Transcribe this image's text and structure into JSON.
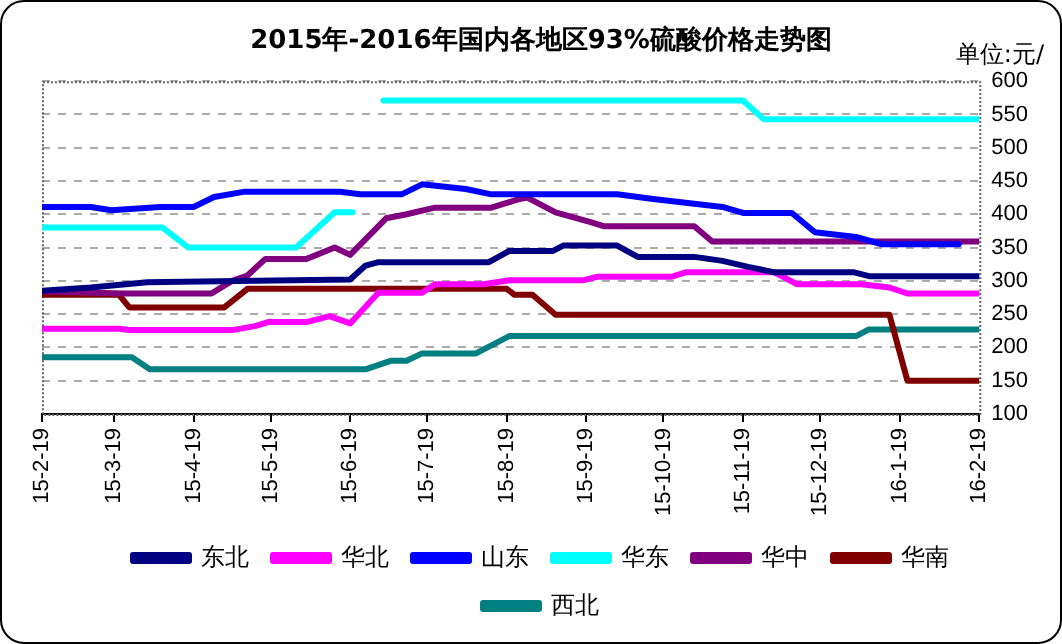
{
  "chart_data": {
    "type": "line",
    "title": "2015年-2016年国内各地区93%硫酸价格走势图",
    "ylabel": "单位:元/",
    "xlim": [
      "2015-02-19",
      "2016-02-19"
    ],
    "xticks": [
      {
        "value": "2015-02-19",
        "label": "15-2-19"
      },
      {
        "value": "2015-03-19",
        "label": "15-3-19"
      },
      {
        "value": "2015-04-19",
        "label": "15-4-19"
      },
      {
        "value": "2015-05-19",
        "label": "15-5-19"
      },
      {
        "value": "2015-06-19",
        "label": "15-6-19"
      },
      {
        "value": "2015-07-19",
        "label": "15-7-19"
      },
      {
        "value": "2015-08-19",
        "label": "15-8-19"
      },
      {
        "value": "2015-09-19",
        "label": "15-9-19"
      },
      {
        "value": "2015-10-19",
        "label": "15-10-19"
      },
      {
        "value": "2015-11-19",
        "label": "15-11-19"
      },
      {
        "value": "2015-12-19",
        "label": "15-12-19"
      },
      {
        "value": "2016-01-19",
        "label": "16-1-19"
      },
      {
        "value": "2016-02-19",
        "label": "16-2-19"
      }
    ],
    "ylim": [
      100,
      600
    ],
    "yticks": [
      100,
      150,
      200,
      250,
      300,
      350,
      400,
      450,
      500,
      550,
      600
    ],
    "grid": "y",
    "legend": "bottom",
    "marker": "none",
    "line_style": "solid",
    "series": [
      {
        "name": "东北",
        "color": "#000080",
        "x": [
          "2015-02-19",
          "2015-03-10",
          "2015-04-01",
          "2015-05-13",
          "2015-06-19",
          "2015-06-25",
          "2015-06-30",
          "2015-08-12",
          "2015-08-20",
          "2015-09-06",
          "2015-09-10",
          "2015-10-01",
          "2015-10-09",
          "2015-10-31",
          "2015-11-11",
          "2015-11-21",
          "2015-12-01",
          "2016-01-01",
          "2016-01-07",
          "2016-02-19"
        ],
        "values": [
          285,
          290,
          298,
          300,
          302,
          323,
          328,
          328,
          345,
          345,
          353,
          353,
          336,
          336,
          330,
          321,
          313,
          313,
          307,
          307
        ]
      },
      {
        "name": "华北",
        "color": "#ff00ff",
        "x": [
          "2015-02-19",
          "2015-03-21",
          "2015-03-25",
          "2015-05-04",
          "2015-05-13",
          "2015-05-18",
          "2015-06-02",
          "2015-06-11",
          "2015-06-19",
          "2015-06-30",
          "2015-07-17",
          "2015-07-22",
          "2015-08-10",
          "2015-08-20",
          "2015-09-18",
          "2015-09-23",
          "2015-10-22",
          "2015-10-28",
          "2015-12-01",
          "2015-12-10",
          "2016-01-04",
          "2016-01-15",
          "2016-01-22",
          "2016-02-19"
        ],
        "values": [
          228,
          228,
          226,
          226,
          232,
          238,
          238,
          247,
          236,
          282,
          282,
          295,
          295,
          301,
          301,
          306,
          306,
          313,
          313,
          295,
          295,
          290,
          281,
          281
        ]
      },
      {
        "name": "山东",
        "color": "#0000ff",
        "x": [
          "2015-02-19",
          "2015-03-10",
          "2015-03-18",
          "2015-04-06",
          "2015-04-19",
          "2015-04-27",
          "2015-05-09",
          "2015-06-15",
          "2015-06-23",
          "2015-07-09",
          "2015-07-17",
          "2015-08-03",
          "2015-08-13",
          "2015-10-01",
          "2015-10-15",
          "2015-10-31",
          "2015-11-11",
          "2015-11-19",
          "2015-12-08",
          "2015-12-17",
          "2016-01-02",
          "2016-01-12",
          "2016-02-11"
        ],
        "values": [
          411,
          411,
          406,
          411,
          411,
          426,
          434,
          434,
          430,
          430,
          445,
          438,
          430,
          430,
          423,
          416,
          411,
          402,
          402,
          373,
          366,
          355,
          355
        ]
      },
      {
        "name": "华东",
        "color": "#00ffff",
        "x": [
          "2015-02-19",
          "2015-04-07",
          "2015-04-17",
          "2015-05-29",
          "2015-06-13",
          "2015-06-20",
          "2015-06-26",
          "2015-07-02",
          "2015-11-19",
          "2015-11-27",
          "2016-02-19"
        ],
        "values": [
          380,
          380,
          350,
          350,
          403,
          403,
          null,
          571,
          571,
          543,
          543
        ]
      },
      {
        "name": "华中",
        "color": "#800080",
        "x": [
          "2015-02-19",
          "2015-03-23",
          "2015-04-26",
          "2015-05-04",
          "2015-05-10",
          "2015-05-17",
          "2015-06-02",
          "2015-06-13",
          "2015-06-19",
          "2015-07-03",
          "2015-07-11",
          "2015-07-22",
          "2015-08-13",
          "2015-08-24",
          "2015-08-27",
          "2015-09-07",
          "2015-09-21",
          "2015-09-26",
          "2015-10-31",
          "2015-11-07",
          "2016-02-19"
        ],
        "values": [
          284,
          281,
          281,
          300,
          308,
          333,
          333,
          350,
          339,
          394,
          400,
          410,
          410,
          423,
          425,
          403,
          388,
          382,
          382,
          359,
          359
        ]
      },
      {
        "name": "华南",
        "color": "#800000",
        "x": [
          "2015-02-19",
          "2015-03-21",
          "2015-03-25",
          "2015-05-01",
          "2015-05-10",
          "2015-08-19",
          "2015-08-22",
          "2015-08-29",
          "2015-09-07",
          "2016-01-15",
          "2016-01-22",
          "2016-02-19"
        ],
        "values": [
          279,
          279,
          260,
          260,
          288,
          288,
          279,
          279,
          249,
          249,
          150,
          150
        ]
      },
      {
        "name": "西北",
        "color": "#008080",
        "x": [
          "2015-02-19",
          "2015-03-26",
          "2015-04-02",
          "2015-06-25",
          "2015-07-05",
          "2015-07-11",
          "2015-07-17",
          "2015-08-07",
          "2015-08-20",
          "2016-01-02",
          "2016-01-07",
          "2016-02-19"
        ],
        "values": [
          185,
          185,
          167,
          167,
          180,
          180,
          191,
          191,
          217,
          217,
          227,
          227
        ]
      }
    ]
  }
}
